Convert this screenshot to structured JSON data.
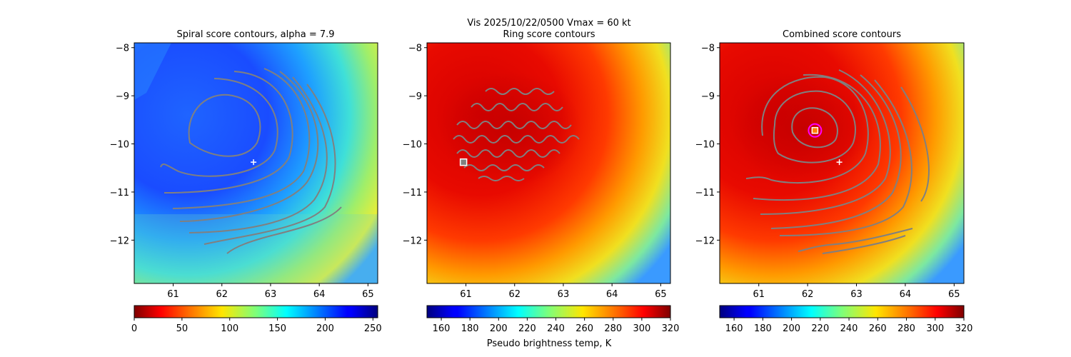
{
  "figure": {
    "suptitle": "Vis  2025/10/22/0500    Vmax = 60 kt"
  },
  "chart_data": [
    {
      "type": "heatmap",
      "title": "Spiral score contours, alpha =  7.9",
      "colormap": "jet",
      "colorbar": {
        "range": [
          0,
          255
        ],
        "ticks": [
          "0",
          "50",
          "100",
          "150",
          "200",
          "250"
        ],
        "label": "",
        "reversed": true
      },
      "xlim": [
        60.2,
        65.2
      ],
      "ylim": [
        -12.9,
        -7.9
      ],
      "xticks": [
        "61",
        "62",
        "63",
        "64",
        "65"
      ],
      "yticks": [
        "−8",
        "−9",
        "−10",
        "−11",
        "−12"
      ],
      "center_marker": {
        "type": "plus",
        "color": "#ffffff",
        "x": 62.65,
        "y": -10.38
      },
      "contour_color": "#808080"
    },
    {
      "type": "heatmap",
      "title": "Ring score contours",
      "colormap": "jet",
      "colorbar": {
        "range": [
          150,
          320
        ],
        "ticks": [
          "160",
          "180",
          "200",
          "220",
          "240",
          "260",
          "280",
          "300",
          "320"
        ],
        "label": "Pseudo brightness temp, K",
        "reversed": false
      },
      "xlim": [
        60.2,
        65.2
      ],
      "ylim": [
        -12.9,
        -7.9
      ],
      "xticks": [
        "61",
        "62",
        "63",
        "64",
        "65"
      ],
      "yticks": [
        "−8",
        "−9",
        "−10",
        "−11",
        "−12"
      ],
      "center_marker": {
        "type": "square",
        "color": "#ffffff",
        "x": 60.95,
        "y": -10.38
      },
      "contour_color": "#808080"
    },
    {
      "type": "heatmap",
      "title": "Combined score contours",
      "colormap": "jet",
      "colorbar": {
        "range": [
          150,
          320
        ],
        "ticks": [
          "160",
          "180",
          "200",
          "220",
          "240",
          "260",
          "280",
          "300",
          "320"
        ],
        "label": "",
        "reversed": false
      },
      "xlim": [
        60.2,
        65.2
      ],
      "ylim": [
        -12.9,
        -7.9
      ],
      "xticks": [
        "61",
        "62",
        "63",
        "64",
        "65"
      ],
      "yticks": [
        "−8",
        "−9",
        "−10",
        "−11",
        "−12"
      ],
      "center_marker": {
        "type": "plus",
        "color": "#ffffff",
        "x": 62.65,
        "y": -10.38
      },
      "secondary_marker": {
        "type": "square-in-circle",
        "color": "#ff00ff",
        "x": 62.15,
        "y": -9.72
      },
      "contour_color": "#808080"
    }
  ]
}
